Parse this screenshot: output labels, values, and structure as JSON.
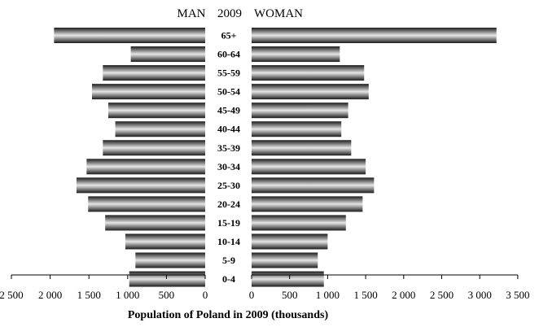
{
  "chart_data": {
    "type": "bar",
    "orientation": "horizontal",
    "layout": "population-pyramid",
    "header": {
      "left": "MAN",
      "center": "2009",
      "right": "WOMAN"
    },
    "xlabel": "Population of Poland in 2009  (thousands)",
    "categories": [
      "65+",
      "60-64",
      "55-59",
      "50-54",
      "45-49",
      "40-44",
      "35-39",
      "30-34",
      "25-30",
      "20-24",
      "15-19",
      "10-14",
      "5-9",
      "0-4"
    ],
    "series": [
      {
        "name": "MAN",
        "values": [
          1950,
          960,
          1320,
          1460,
          1250,
          1160,
          1320,
          1530,
          1660,
          1510,
          1290,
          1030,
          900,
          980
        ]
      },
      {
        "name": "WOMAN",
        "values": [
          3220,
          1160,
          1480,
          1540,
          1270,
          1180,
          1310,
          1500,
          1610,
          1460,
          1240,
          1000,
          870,
          950
        ]
      }
    ],
    "left_axis": {
      "ticks": [
        "2 500",
        "2 000",
        "1 500",
        "1 000",
        "500",
        "0"
      ],
      "range": [
        0,
        2500
      ]
    },
    "right_axis": {
      "ticks": [
        "0",
        "500",
        "1 000",
        "1 500",
        "2 000",
        "2 500",
        "3 000",
        "3 500"
      ],
      "range": [
        0,
        3500
      ]
    },
    "grid": false,
    "legend": "none",
    "bar_style": "dark-gray-gradient"
  }
}
